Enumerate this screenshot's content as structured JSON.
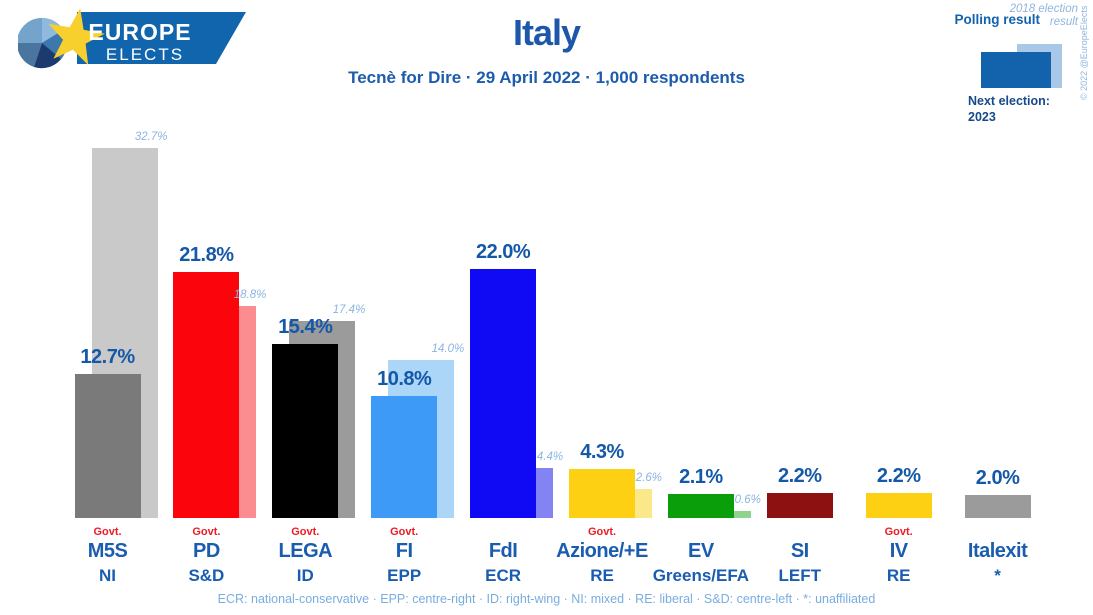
{
  "header": {
    "logo_line1": "EUROPE",
    "logo_line2": "ELECTS",
    "title": "Italy",
    "subtitle": "Tecnè for Dire · 29 April 2022 · 1,000 respondents"
  },
  "legend": {
    "polling_label": "Polling result",
    "election_label": "2018 election result",
    "polling_color": "#1263ac",
    "election_color": "#a9c8e8",
    "next_election_label": "Next election:",
    "next_election_year": "2023",
    "copyright": "© 2022 @EuropeElects"
  },
  "chart_data": {
    "type": "bar",
    "title": "Italy",
    "subtitle": "Tecnè for Dire · 29 April 2022 · 1,000 respondents",
    "series": [
      {
        "name": "Polling result"
      },
      {
        "name": "2018 election result"
      }
    ],
    "govt_label": "Govt.",
    "ylim": [
      0,
      35
    ],
    "grid": false,
    "legend_position": "top-right",
    "parties": [
      {
        "name": "M5S",
        "group": "NI",
        "govt": true,
        "polling": 12.7,
        "election2018": 32.7,
        "color": "#7a7a7a",
        "election_color": "#c9c9c9"
      },
      {
        "name": "PD",
        "group": "S&D",
        "govt": true,
        "polling": 21.8,
        "election2018": 18.8,
        "color": "#fb040c",
        "election_color": "#fb8d90"
      },
      {
        "name": "LEGA",
        "group": "ID",
        "govt": true,
        "polling": 15.4,
        "election2018": 17.4,
        "color": "#000000",
        "election_color": "#9b9b9b"
      },
      {
        "name": "FI",
        "group": "EPP",
        "govt": true,
        "polling": 10.8,
        "election2018": 14.0,
        "color": "#3d9bf7",
        "election_color": "#abd6f8"
      },
      {
        "name": "FdI",
        "group": "ECR",
        "govt": false,
        "polling": 22.0,
        "election2018": 4.4,
        "color": "#0f0af3",
        "election_color": "#8383f3"
      },
      {
        "name": "Azione/+E",
        "group": "RE",
        "govt": true,
        "polling": 4.3,
        "election2018": 2.6,
        "color": "#fdd014",
        "election_color": "#fbe88a"
      },
      {
        "name": "EV",
        "group": "Greens/EFA",
        "govt": false,
        "polling": 2.1,
        "election2018": 0.6,
        "color": "#0b9e0b",
        "election_color": "#8fd38f"
      },
      {
        "name": "SI",
        "group": "LEFT",
        "govt": false,
        "polling": 2.2,
        "election2018": null,
        "color": "#8e1111",
        "election_color": null
      },
      {
        "name": "IV",
        "group": "RE",
        "govt": true,
        "polling": 2.2,
        "election2018": null,
        "color": "#fdd014",
        "election_color": null
      },
      {
        "name": "Italexit",
        "group": "*",
        "govt": false,
        "polling": 2.0,
        "election2018": null,
        "color": "#9b9b9b",
        "election_color": null
      }
    ]
  },
  "footer": {
    "text": "ECR: national-conservative · EPP: centre-right · ID: right-wing · NI: mixed · RE: liberal · S&D: centre-left · *: unaffiliated"
  }
}
